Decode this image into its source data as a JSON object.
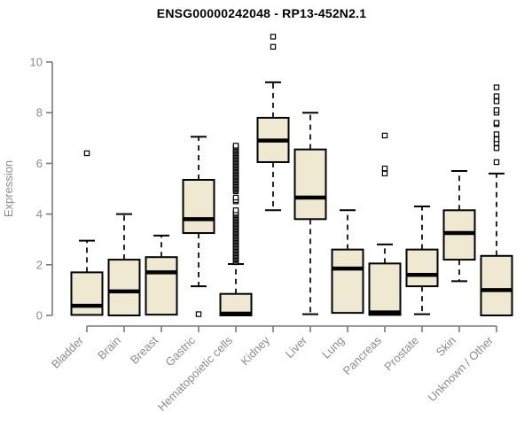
{
  "figure": {
    "title": "ENSG00000242048 - RP13-452N2.1",
    "background_color": "#ffffff"
  },
  "chart_data": {
    "type": "boxplot",
    "title": "ENSG00000242048 - RP13-452N2.1",
    "xlabel": "",
    "ylabel": "Expression",
    "ylim": [
      0,
      11.2
    ],
    "yticks": [
      0,
      2,
      4,
      6,
      8,
      10
    ],
    "grid": false,
    "legend": null,
    "colors": {
      "box_fill": "#f0e9d1",
      "box_border": "#000000",
      "median": "#000000",
      "whisker": "#000000",
      "outlier_border": "#000000",
      "outlier_fill": "#ffffff",
      "axis_line": "#7a7a7a",
      "tick_text": "#8b8b8b",
      "title_text": "#000000"
    },
    "categories": [
      "Bladder",
      "Brain",
      "Breast",
      "Gastric",
      "Hematopoietic cells",
      "Kidney",
      "Liver",
      "Lung",
      "Pancreas",
      "Prostate",
      "Skin",
      "Unknown / Other"
    ],
    "boxes": [
      {
        "name": "Bladder",
        "whisker_low": 0.02,
        "q1": 0.02,
        "median": 0.38,
        "q3": 1.7,
        "whisker_high": 2.95,
        "outliers": [
          6.4
        ]
      },
      {
        "name": "Brain",
        "whisker_low": 0.0,
        "q1": 0.0,
        "median": 0.95,
        "q3": 2.2,
        "whisker_high": 4.0,
        "outliers": []
      },
      {
        "name": "Breast",
        "whisker_low": 0.03,
        "q1": 0.03,
        "median": 1.7,
        "q3": 2.3,
        "whisker_high": 3.15,
        "outliers": []
      },
      {
        "name": "Gastric",
        "whisker_low": 1.15,
        "q1": 3.25,
        "median": 3.8,
        "q3": 5.35,
        "whisker_high": 7.05,
        "outliers": [
          0.05
        ]
      },
      {
        "name": "Hematopoietic cells",
        "whisker_low": 0.0,
        "q1": 0.0,
        "median": 0.07,
        "q3": 0.85,
        "whisker_high": 2.03,
        "outliers": [
          2.1,
          2.15,
          2.2,
          2.25,
          2.3,
          2.35,
          2.4,
          2.45,
          2.5,
          2.55,
          2.6,
          2.65,
          2.7,
          2.75,
          2.8,
          2.85,
          2.9,
          2.95,
          3.0,
          3.05,
          3.1,
          3.15,
          3.2,
          3.25,
          3.3,
          3.35,
          3.4,
          3.45,
          3.5,
          3.55,
          3.6,
          3.65,
          3.7,
          3.75,
          3.8,
          3.85,
          3.9,
          3.95,
          4.0,
          4.05,
          4.15,
          4.5,
          4.55,
          4.65,
          4.9,
          4.95,
          5.0,
          5.05,
          5.1,
          5.15,
          5.2,
          5.25,
          5.3,
          5.35,
          5.4,
          5.45,
          5.5,
          5.55,
          5.6,
          5.65,
          5.7,
          5.75,
          5.8,
          5.85,
          5.9,
          5.95,
          6.0,
          6.05,
          6.1,
          6.15,
          6.2,
          6.25,
          6.3,
          6.35,
          6.4,
          6.45,
          6.5,
          6.55,
          6.6,
          6.65,
          6.7
        ]
      },
      {
        "name": "Kidney",
        "whisker_low": 4.15,
        "q1": 6.05,
        "median": 6.9,
        "q3": 7.8,
        "whisker_high": 9.2,
        "outliers": [
          10.6,
          11.0
        ]
      },
      {
        "name": "Liver",
        "whisker_low": 0.05,
        "q1": 3.8,
        "median": 4.65,
        "q3": 6.55,
        "whisker_high": 8.0,
        "outliers": []
      },
      {
        "name": "Lung",
        "whisker_low": 0.1,
        "q1": 0.1,
        "median": 1.85,
        "q3": 2.6,
        "whisker_high": 4.15,
        "outliers": []
      },
      {
        "name": "Pancreas",
        "whisker_low": 0.02,
        "q1": 0.02,
        "median": 0.12,
        "q3": 2.05,
        "whisker_high": 2.8,
        "outliers": [
          5.6,
          5.8,
          7.1
        ]
      },
      {
        "name": "Prostate",
        "whisker_low": 0.05,
        "q1": 1.15,
        "median": 1.6,
        "q3": 2.6,
        "whisker_high": 4.3,
        "outliers": []
      },
      {
        "name": "Skin",
        "whisker_low": 1.35,
        "q1": 2.2,
        "median": 3.25,
        "q3": 4.15,
        "whisker_high": 5.7,
        "outliers": []
      },
      {
        "name": "Unknown / Other",
        "whisker_low": 0.0,
        "q1": 0.0,
        "median": 1.0,
        "q3": 2.35,
        "whisker_high": 5.6,
        "outliers": [
          6.05,
          6.6,
          6.8,
          6.95,
          7.15,
          7.55,
          7.6,
          8.0,
          8.1,
          8.45,
          8.65,
          9.0
        ]
      }
    ]
  }
}
